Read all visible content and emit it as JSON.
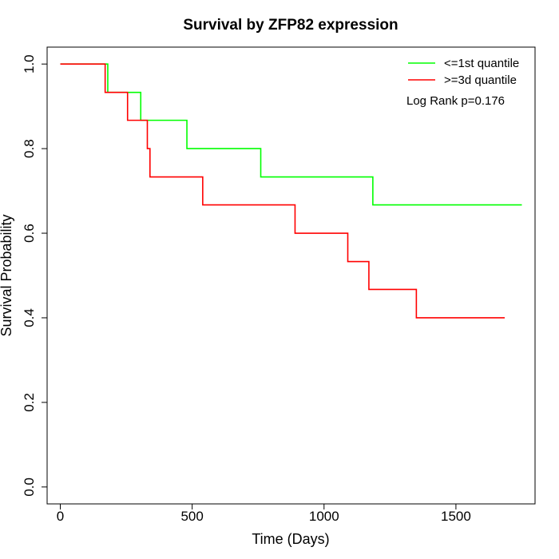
{
  "chart_data": {
    "type": "line",
    "title": "Survival by ZFP82 expression",
    "xlabel": "Time (Days)",
    "ylabel": "Survival Probability",
    "xlim": [
      -50,
      1800
    ],
    "ylim": [
      -0.04,
      1.04
    ],
    "x_ticks": [
      0,
      500,
      1000,
      1500
    ],
    "y_ticks": [
      0.0,
      0.2,
      0.4,
      0.6,
      0.8,
      1.0
    ],
    "x_tick_labels": [
      "0",
      "500",
      "1000",
      "1500"
    ],
    "y_tick_labels": [
      "0.0",
      "0.2",
      "0.4",
      "0.6",
      "0.8",
      "1.0"
    ],
    "grid": false,
    "legend_position": "top-right",
    "annotation": "Log Rank p=0.176",
    "series": [
      {
        "name": "<=1st quantile",
        "color": "#00ff00",
        "step": "post",
        "x": [
          0,
          180,
          305,
          480,
          760,
          1185,
          1750
        ],
        "y": [
          1.0,
          0.933,
          0.867,
          0.8,
          0.733,
          0.667,
          0.667
        ]
      },
      {
        "name": ">=3d quantile",
        "color": "#ff0000",
        "step": "post",
        "x": [
          0,
          170,
          255,
          330,
          340,
          540,
          890,
          1090,
          1170,
          1350,
          1685
        ],
        "y": [
          1.0,
          0.933,
          0.867,
          0.8,
          0.733,
          0.667,
          0.6,
          0.533,
          0.467,
          0.4,
          0.4
        ]
      }
    ]
  }
}
